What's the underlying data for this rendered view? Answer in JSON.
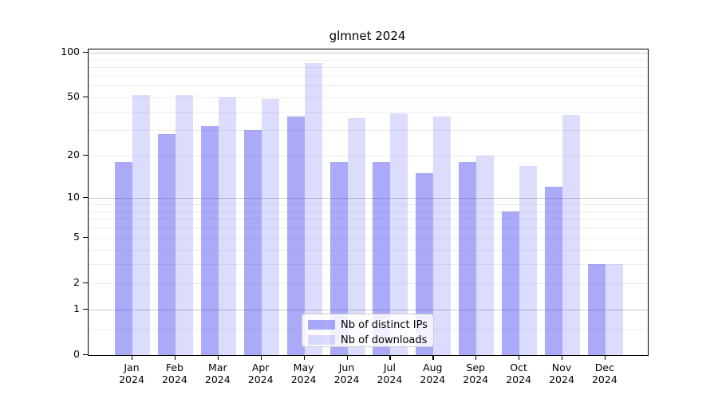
{
  "title": "glmnet 2024",
  "accent_colors": {
    "bar_base": "#3030ee",
    "grid_minor": "#ededed",
    "grid_major": "#c9c9c9",
    "axis": "#000000"
  },
  "legend": {
    "items": [
      {
        "label": "Nb of distinct IPs",
        "color": "#aaaaf8",
        "base": "#3030ee",
        "alpha": 0.41
      },
      {
        "label": "Nb of downloads",
        "color": "#dcdcf9",
        "base": "#3030ee",
        "alpha": 0.17
      }
    ]
  },
  "x_axis": {
    "tick_labels": [
      "Jan\n2024",
      "Feb\n2024",
      "Mar\n2024",
      "Apr\n2024",
      "May\n2024",
      "Jun\n2024",
      "Jul\n2024",
      "Aug\n2024",
      "Sep\n2024",
      "Oct\n2024",
      "Nov\n2024",
      "Dec\n2024"
    ]
  },
  "y_axis": {
    "tick_labels": [
      "0",
      "1",
      "2",
      "5",
      "10",
      "20",
      "50",
      "100"
    ],
    "tick_values": [
      0,
      1,
      2,
      5,
      10,
      20,
      50,
      100
    ]
  },
  "chart_data": {
    "type": "bar",
    "title": "glmnet 2024",
    "xlabel": "",
    "ylabel": "",
    "yscale": "log1p",
    "ylim": [
      0,
      105
    ],
    "grid": "horizontal",
    "legend_position": "lower center",
    "categories": [
      "Jan 2024",
      "Feb 2024",
      "Mar 2024",
      "Apr 2024",
      "May 2024",
      "Jun 2024",
      "Jul 2024",
      "Aug 2024",
      "Sep 2024",
      "Oct 2024",
      "Nov 2024",
      "Dec 2024"
    ],
    "series": [
      {
        "name": "Nb of distinct IPs",
        "base": "#3030ee",
        "alpha": 0.41,
        "values": [
          18,
          28,
          32,
          30,
          37,
          18,
          18,
          15,
          18,
          8,
          12,
          3
        ]
      },
      {
        "name": "Nb of downloads",
        "base": "#3030ee",
        "alpha": 0.17,
        "values": [
          52,
          52,
          50,
          49,
          85,
          36,
          39,
          37,
          20,
          17,
          38,
          3
        ]
      }
    ]
  }
}
